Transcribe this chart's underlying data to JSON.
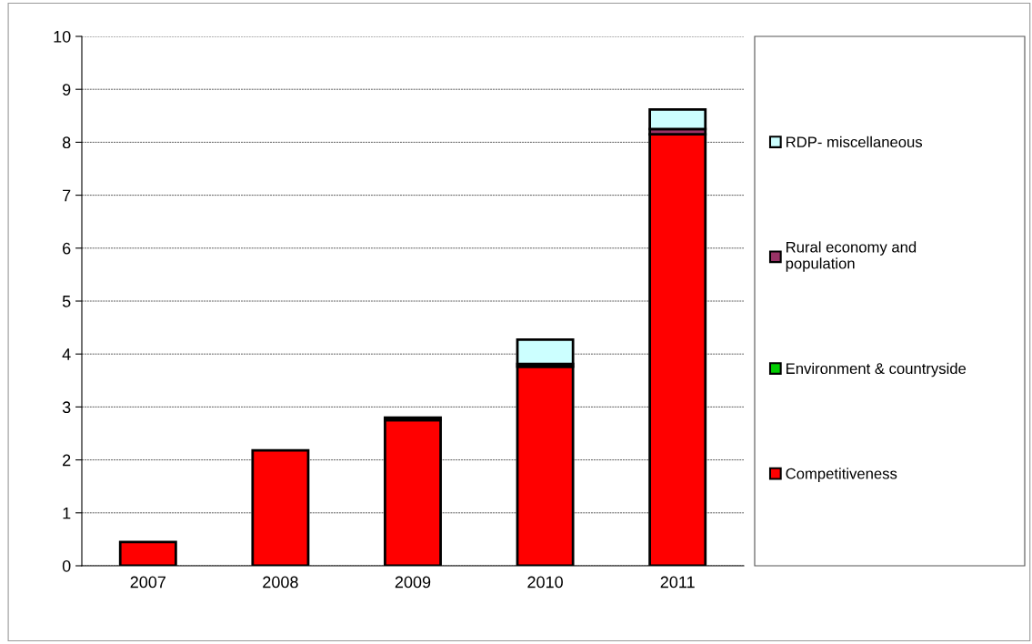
{
  "chart_data": {
    "type": "bar",
    "stacked": true,
    "categories": [
      "2007",
      "2008",
      "2009",
      "2010",
      "2011"
    ],
    "series": [
      {
        "name": "Competitiveness",
        "color": "#ff0000",
        "values": [
          0.45,
          2.18,
          2.75,
          3.76,
          8.15
        ]
      },
      {
        "name": "Environment & countryside",
        "color": "#00cc00",
        "values": [
          null,
          null,
          null,
          null,
          null
        ]
      },
      {
        "name": "Rural economy and\npopulation",
        "color": "#993366",
        "values": [
          null,
          null,
          0.05,
          0.05,
          0.1
        ]
      },
      {
        "name": "RDP- miscellaneous",
        "color": "#ccffff",
        "values": [
          null,
          null,
          null,
          0.46,
          0.37
        ]
      }
    ],
    "ylim": [
      0,
      10
    ],
    "yticks": [
      0,
      1,
      2,
      3,
      4,
      5,
      6,
      7,
      8,
      9,
      10
    ],
    "grid": "y",
    "legend": "right"
  }
}
